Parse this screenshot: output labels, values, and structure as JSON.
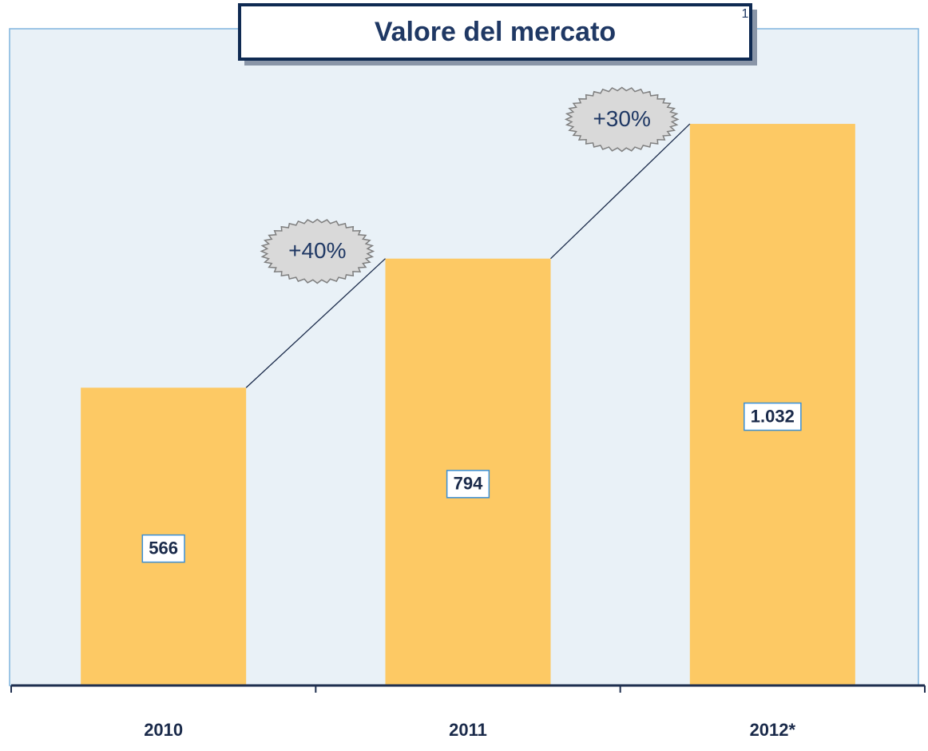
{
  "chart_data": {
    "type": "bar",
    "title": "Valore del mercato",
    "categories": [
      "2010",
      "2011",
      "2012*"
    ],
    "values": [
      566,
      794,
      1032
    ],
    "value_labels": [
      "566",
      "794",
      "1.032"
    ],
    "color": "#fdc964",
    "ylim": [
      40,
      1200
    ],
    "growth_labels": [
      "+40%",
      "+30%"
    ],
    "page_number": "1"
  }
}
